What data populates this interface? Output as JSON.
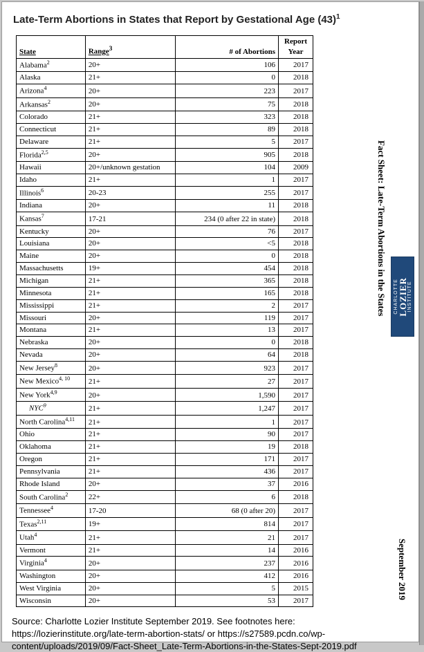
{
  "title_prefix": "Late-Term Abortions in States that Report by Gestational Age (43)",
  "title_sup": "1",
  "columns": {
    "state": "State",
    "range": "Range",
    "range_sup": "3",
    "abortions": "# of Abortions",
    "year": "Report Year"
  },
  "col_widths": {
    "state": 100,
    "range": 130,
    "abortions": 150,
    "year": 50
  },
  "rows": [
    {
      "state": "Alabama",
      "sup": "2",
      "range": "20+",
      "abortions": "106",
      "year": "2017"
    },
    {
      "state": "Alaska",
      "range": "21+",
      "abortions": "0",
      "year": "2018"
    },
    {
      "state": "Arizona",
      "sup": "4",
      "range": "20+",
      "abortions": "223",
      "year": "2017"
    },
    {
      "state": "Arkansas",
      "sup": "2",
      "range": "20+",
      "abortions": "75",
      "year": "2018"
    },
    {
      "state": "Colorado",
      "range": "21+",
      "abortions": "323",
      "year": "2018"
    },
    {
      "state": "Connecticut",
      "range": "21+",
      "abortions": "89",
      "year": "2018"
    },
    {
      "state": "Delaware",
      "range": "21+",
      "abortions": "5",
      "year": "2017"
    },
    {
      "state": "Florida",
      "sup": "2,5",
      "range": "20+",
      "abortions": "905",
      "year": "2018"
    },
    {
      "state": "Hawaii",
      "range": "20+/unknown gestation",
      "abortions": "104",
      "year": "2009"
    },
    {
      "state": "Idaho",
      "range": "21+",
      "abortions": "1",
      "year": "2017"
    },
    {
      "state": "Illinois",
      "sup": "6",
      "range": "20-23",
      "abortions": "255",
      "year": "2017"
    },
    {
      "state": "Indiana",
      "range": "20+",
      "abortions": "11",
      "year": "2018"
    },
    {
      "state": "Kansas",
      "sup": "7",
      "range": "17-21",
      "abortions": "234 (0 after 22 in state)",
      "year": "2018"
    },
    {
      "state": "Kentucky",
      "range": "20+",
      "abortions": "76",
      "year": "2017"
    },
    {
      "state": "Louisiana",
      "range": "20+",
      "abortions": "<5",
      "year": "2018"
    },
    {
      "state": "Maine",
      "range": "20+",
      "abortions": "0",
      "year": "2018"
    },
    {
      "state": "Massachusetts",
      "range": "19+",
      "abortions": "454",
      "year": "2018"
    },
    {
      "state": "Michigan",
      "range": "21+",
      "abortions": "365",
      "year": "2018"
    },
    {
      "state": "Minnesota",
      "range": "21+",
      "abortions": "165",
      "year": "2018"
    },
    {
      "state": "Mississippi",
      "range": "21+",
      "abortions": "2",
      "year": "2017"
    },
    {
      "state": "Missouri",
      "range": "20+",
      "abortions": "119",
      "year": "2017"
    },
    {
      "state": "Montana",
      "range": "21+",
      "abortions": "13",
      "year": "2017"
    },
    {
      "state": "Nebraska",
      "range": "20+",
      "abortions": "0",
      "year": "2018"
    },
    {
      "state": "Nevada",
      "range": "20+",
      "abortions": "64",
      "year": "2018"
    },
    {
      "state": "New Jersey",
      "sup": "8",
      "range": "20+",
      "abortions": "923",
      "year": "2017"
    },
    {
      "state": "New Mexico",
      "sup": "4, 10",
      "range": "21+",
      "abortions": "27",
      "year": "2017"
    },
    {
      "state": "New York",
      "sup": "4,9",
      "range": "20+",
      "abortions": "1,590",
      "year": "2017"
    },
    {
      "state": "NYC",
      "sup": "9",
      "indent": true,
      "range": "21+",
      "abortions": "1,247",
      "year": "2017"
    },
    {
      "state": "North Carolina",
      "sup": "4,11",
      "range": "21+",
      "abortions": "1",
      "year": "2017"
    },
    {
      "state": "Ohio",
      "range": "21+",
      "abortions": "90",
      "year": "2017"
    },
    {
      "state": "Oklahoma",
      "range": "21+",
      "abortions": "19",
      "year": "2018"
    },
    {
      "state": "Oregon",
      "range": "21+",
      "abortions": "171",
      "year": "2017"
    },
    {
      "state": "Pennsylvania",
      "range": "21+",
      "abortions": "436",
      "year": "2017"
    },
    {
      "state": "Rhode Island",
      "range": "20+",
      "abortions": "37",
      "year": "2016"
    },
    {
      "state": "South Carolina",
      "sup": "2",
      "range": "22+",
      "abortions": "6",
      "year": "2018"
    },
    {
      "state": "Tennessee",
      "sup": "4",
      "range": "17-20",
      "abortions": "68 (0 after 20)",
      "year": "2017"
    },
    {
      "state": "Texas",
      "sup": "2,11",
      "range": "19+",
      "abortions": "814",
      "year": "2017"
    },
    {
      "state": "Utah",
      "sup": "4",
      "range": "21+",
      "abortions": "21",
      "year": "2017"
    },
    {
      "state": "Vermont",
      "range": "21+",
      "abortions": "14",
      "year": "2016"
    },
    {
      "state": "Virginia",
      "sup": "4",
      "range": "20+",
      "abortions": "237",
      "year": "2016"
    },
    {
      "state": "Washington",
      "range": "20+",
      "abortions": "412",
      "year": "2016"
    },
    {
      "state": "West Virginia",
      "range": "20+",
      "abortions": "5",
      "year": "2015"
    },
    {
      "state": "Wisconsin",
      "range": "20+",
      "abortions": "53",
      "year": "2017"
    }
  ],
  "sidebar": {
    "fact_label": "Fact Sheet: Late-Term Abortions in the States",
    "date_label": "September 2019",
    "logo_line1": "CHARLOTTE",
    "logo_line2": "LOZIER",
    "logo_line3": "INSTITUTE"
  },
  "source_text": "Source: Charlotte Lozier Institute September 2019. See footnotes here: https://lozierinstitute.org/late-term-abortion-stats/ or https://s27589.pcdn.co/wp-content/uploads/2019/09/Fact-Sheet_Late-Term-Abortions-in-the-States-Sept-2019.pdf",
  "colors": {
    "page_bg": "#ffffff",
    "outer_bg": "#c8c8c8",
    "logo_bg": "#20497a",
    "text": "#000000"
  }
}
